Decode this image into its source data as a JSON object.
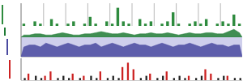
{
  "chart_data": [
    {
      "type": "bar",
      "color": "#2e8b3e",
      "grid": true,
      "tick_labels": false,
      "x": [
        0,
        1,
        2,
        3,
        4,
        5,
        6,
        7,
        8,
        9,
        10,
        11,
        12,
        13,
        14,
        15,
        16,
        17,
        18,
        19,
        20,
        21,
        22,
        23,
        24,
        25,
        26,
        27,
        28,
        29,
        30,
        31,
        32,
        33,
        34,
        35,
        36,
        37,
        38,
        39
      ],
      "xlim": [
        0,
        40
      ],
      "xticks": [
        0,
        4,
        8,
        12,
        16,
        20,
        24,
        28,
        32,
        36
      ],
      "ylim": [
        0,
        10
      ],
      "values": [
        1,
        0,
        2,
        1,
        0,
        3,
        1,
        0,
        1,
        2,
        0,
        1,
        4,
        1,
        0,
        2,
        1,
        8,
        2,
        1,
        0,
        3,
        1,
        2,
        0,
        1,
        2,
        6,
        1,
        0,
        1,
        2,
        1,
        3,
        0,
        1,
        2,
        1,
        5,
        1
      ]
    },
    {
      "type": "area",
      "color": "#1f7a35",
      "tick_labels": false,
      "x": [
        0,
        1,
        2,
        3,
        4,
        5,
        6,
        7,
        8,
        9,
        10,
        11,
        12,
        13,
        14,
        15,
        16,
        17,
        18,
        19,
        20,
        21,
        22,
        23,
        24,
        25,
        26,
        27,
        28,
        29,
        30,
        31,
        32,
        33,
        34,
        35,
        36,
        37,
        38,
        39
      ],
      "xlim": [
        0,
        40
      ],
      "ylim": [
        0,
        10
      ],
      "values": [
        2,
        2,
        3,
        3,
        2,
        2,
        3,
        4,
        3,
        2,
        2,
        3,
        3,
        4,
        5,
        4,
        3,
        3,
        4,
        3,
        2,
        3,
        3,
        4,
        3,
        3,
        4,
        3,
        2,
        3,
        4,
        3,
        3,
        4,
        4,
        3,
        3,
        5,
        7,
        4
      ]
    },
    {
      "type": "area",
      "color": "#4a4aa0",
      "tick_labels": false,
      "x": [
        0,
        1,
        2,
        3,
        4,
        5,
        6,
        7,
        8,
        9,
        10,
        11,
        12,
        13,
        14,
        15,
        16,
        17,
        18,
        19,
        20,
        21,
        22,
        23,
        24,
        25,
        26,
        27,
        28,
        29,
        30,
        31,
        32,
        33,
        34,
        35,
        36,
        37,
        38,
        39
      ],
      "xlim": [
        0,
        40
      ],
      "ylim": [
        0,
        10
      ],
      "values": [
        5,
        6,
        6,
        5,
        7,
        6,
        5,
        6,
        7,
        6,
        5,
        6,
        6,
        7,
        5,
        6,
        7,
        6,
        5,
        6,
        7,
        6,
        6,
        5,
        6,
        7,
        6,
        5,
        6,
        6,
        7,
        6,
        5,
        6,
        7,
        6,
        6,
        5,
        6,
        6
      ]
    },
    {
      "type": "bar",
      "tick_labels": false,
      "x": [
        0,
        1,
        2,
        3,
        4,
        5,
        6,
        7,
        8,
        9,
        10,
        11,
        12,
        13,
        14,
        15,
        16,
        17,
        18,
        19,
        20,
        21,
        22,
        23,
        24,
        25,
        26,
        27,
        28,
        29,
        30,
        31,
        32,
        33,
        34,
        35,
        36,
        37,
        38,
        39
      ],
      "xlim": [
        0,
        40
      ],
      "ylim": [
        0,
        10
      ],
      "series": [
        {
          "color": "#cc2222",
          "values": [
            0,
            3,
            0,
            0,
            2,
            4,
            0,
            0,
            0,
            3,
            0,
            2,
            0,
            0,
            4,
            0,
            0,
            0,
            6,
            8,
            5,
            0,
            0,
            3,
            0,
            0,
            4,
            0,
            0,
            0,
            2,
            0,
            0,
            5,
            3,
            0,
            0,
            2,
            0,
            0
          ]
        },
        {
          "color": "#222222",
          "values": [
            1,
            0,
            2,
            1,
            0,
            0,
            1,
            2,
            1,
            0,
            1,
            0,
            2,
            1,
            0,
            1,
            2,
            1,
            0,
            0,
            0,
            1,
            2,
            0,
            1,
            2,
            0,
            1,
            2,
            1,
            0,
            1,
            2,
            0,
            0,
            1,
            2,
            0,
            1,
            1
          ]
        }
      ]
    }
  ]
}
